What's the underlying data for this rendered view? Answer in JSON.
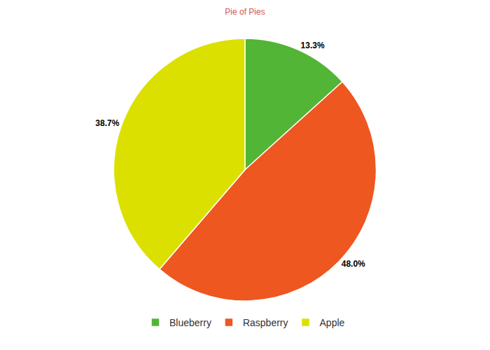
{
  "chart_data": {
    "type": "pie",
    "title": "Pie of Pies",
    "categories": [
      "Blueberry",
      "Raspberry",
      "Apple"
    ],
    "values": [
      13.3,
      48.0,
      38.7
    ],
    "value_labels": [
      "13.3%",
      "48.0%",
      "38.7%"
    ],
    "colors": [
      "#52b535",
      "#ee571f",
      "#dce000"
    ],
    "data_labels": true,
    "legend": "bottom"
  }
}
